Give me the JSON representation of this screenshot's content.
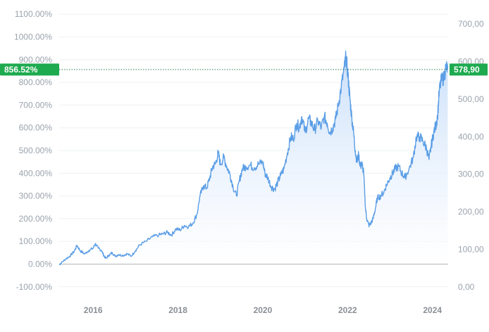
{
  "chart_data": {
    "type": "area",
    "title": "",
    "xlabel": "",
    "ylabel": "",
    "grid": true,
    "left_axis": {
      "ticks": [
        -100,
        0,
        100,
        200,
        300,
        400,
        500,
        600,
        700,
        800,
        900,
        1000,
        1100
      ],
      "tick_labels": [
        "-100.00%",
        "0.00%",
        "100.00%",
        "200.00%",
        "300.00%",
        "400.00%",
        "500.00%",
        "600.00%",
        "700.00%",
        "800.00%",
        "900.00%",
        "1000.00%",
        "1100.00%"
      ],
      "range": [
        -110,
        1110
      ]
    },
    "right_axis": {
      "ticks": [
        0,
        100,
        200,
        300,
        400,
        500,
        600,
        700
      ],
      "tick_labels": [
        "0,00",
        "100,00",
        "200,00",
        "300,00",
        "400,00",
        "500,00",
        "600,00",
        "700,00"
      ]
    },
    "x_axis": {
      "ticks": [
        2016,
        2018,
        2020,
        2022,
        2024
      ],
      "tick_labels": [
        "2016",
        "2018",
        "2020",
        "2022",
        "2024"
      ],
      "range": [
        2015.2,
        2024.37
      ]
    },
    "current_value_left": "856.52%",
    "current_value_right": "578,90",
    "current_percent": 856.52,
    "colors": {
      "line": "#5b9ee6",
      "area_top": "#c8defa",
      "area_bottom": "#ffffff",
      "badge": "#1eaa4f",
      "grid": "#edf0f3",
      "zero_line": "#b0b4b8"
    },
    "series": [
      {
        "values": [
          [
            2015.2,
            -2
          ],
          [
            2015.25,
            5
          ],
          [
            2015.35,
            22
          ],
          [
            2015.45,
            35
          ],
          [
            2015.55,
            55
          ],
          [
            2015.62,
            82
          ],
          [
            2015.7,
            58
          ],
          [
            2015.8,
            45
          ],
          [
            2015.9,
            60
          ],
          [
            2016.0,
            70
          ],
          [
            2016.05,
            90
          ],
          [
            2016.12,
            70
          ],
          [
            2016.2,
            60
          ],
          [
            2016.25,
            38
          ],
          [
            2016.3,
            25
          ],
          [
            2016.38,
            40
          ],
          [
            2016.45,
            50
          ],
          [
            2016.52,
            35
          ],
          [
            2016.6,
            42
          ],
          [
            2016.7,
            38
          ],
          [
            2016.8,
            45
          ],
          [
            2016.9,
            35
          ],
          [
            2017.0,
            60
          ],
          [
            2017.1,
            85
          ],
          [
            2017.25,
            100
          ],
          [
            2017.4,
            120
          ],
          [
            2017.55,
            128
          ],
          [
            2017.65,
            133
          ],
          [
            2017.75,
            140
          ],
          [
            2017.85,
            128
          ],
          [
            2017.95,
            155
          ],
          [
            2018.05,
            150
          ],
          [
            2018.15,
            170
          ],
          [
            2018.25,
            165
          ],
          [
            2018.35,
            180
          ],
          [
            2018.45,
            220
          ],
          [
            2018.52,
            300
          ],
          [
            2018.6,
            345
          ],
          [
            2018.68,
            335
          ],
          [
            2018.75,
            380
          ],
          [
            2018.82,
            430
          ],
          [
            2018.88,
            440
          ],
          [
            2018.95,
            490
          ],
          [
            2019.0,
            440
          ],
          [
            2019.08,
            470
          ],
          [
            2019.15,
            430
          ],
          [
            2019.22,
            400
          ],
          [
            2019.3,
            340
          ],
          [
            2019.38,
            300
          ],
          [
            2019.45,
            370
          ],
          [
            2019.52,
            420
          ],
          [
            2019.6,
            430
          ],
          [
            2019.7,
            435
          ],
          [
            2019.8,
            425
          ],
          [
            2019.9,
            440
          ],
          [
            2020.0,
            450
          ],
          [
            2020.05,
            400
          ],
          [
            2020.12,
            380
          ],
          [
            2020.2,
            340
          ],
          [
            2020.28,
            330
          ],
          [
            2020.35,
            360
          ],
          [
            2020.42,
            390
          ],
          [
            2020.5,
            420
          ],
          [
            2020.58,
            490
          ],
          [
            2020.66,
            560
          ],
          [
            2020.72,
            550
          ],
          [
            2020.8,
            620
          ],
          [
            2020.86,
            600
          ],
          [
            2020.92,
            650
          ],
          [
            2021.0,
            580
          ],
          [
            2021.08,
            640
          ],
          [
            2021.15,
            620
          ],
          [
            2021.22,
            590
          ],
          [
            2021.3,
            630
          ],
          [
            2021.38,
            600
          ],
          [
            2021.45,
            650
          ],
          [
            2021.52,
            620
          ],
          [
            2021.58,
            580
          ],
          [
            2021.65,
            600
          ],
          [
            2021.72,
            640
          ],
          [
            2021.78,
            700
          ],
          [
            2021.85,
            780
          ],
          [
            2021.92,
            860
          ],
          [
            2021.96,
            910
          ],
          [
            2022.0,
            850
          ],
          [
            2022.03,
            780
          ],
          [
            2022.06,
            720
          ],
          [
            2022.1,
            640
          ],
          [
            2022.14,
            580
          ],
          [
            2022.18,
            500
          ],
          [
            2022.22,
            450
          ],
          [
            2022.26,
            480
          ],
          [
            2022.3,
            430
          ],
          [
            2022.34,
            440
          ],
          [
            2022.38,
            400
          ],
          [
            2022.42,
            250
          ],
          [
            2022.45,
            200
          ],
          [
            2022.5,
            170
          ],
          [
            2022.55,
            180
          ],
          [
            2022.6,
            200
          ],
          [
            2022.65,
            240
          ],
          [
            2022.7,
            290
          ],
          [
            2022.78,
            300
          ],
          [
            2022.86,
            320
          ],
          [
            2022.92,
            350
          ],
          [
            2023.0,
            380
          ],
          [
            2023.06,
            400
          ],
          [
            2023.12,
            420
          ],
          [
            2023.2,
            430
          ],
          [
            2023.28,
            400
          ],
          [
            2023.35,
            380
          ],
          [
            2023.45,
            420
          ],
          [
            2023.55,
            470
          ],
          [
            2023.62,
            560
          ],
          [
            2023.7,
            560
          ],
          [
            2023.78,
            540
          ],
          [
            2023.86,
            510
          ],
          [
            2023.92,
            460
          ],
          [
            2023.97,
            520
          ],
          [
            2024.03,
            580
          ],
          [
            2024.08,
            610
          ],
          [
            2024.12,
            650
          ],
          [
            2024.16,
            760
          ],
          [
            2024.21,
            810
          ],
          [
            2024.27,
            820
          ],
          [
            2024.32,
            870
          ],
          [
            2024.36,
            856.52
          ]
        ]
      }
    ]
  }
}
